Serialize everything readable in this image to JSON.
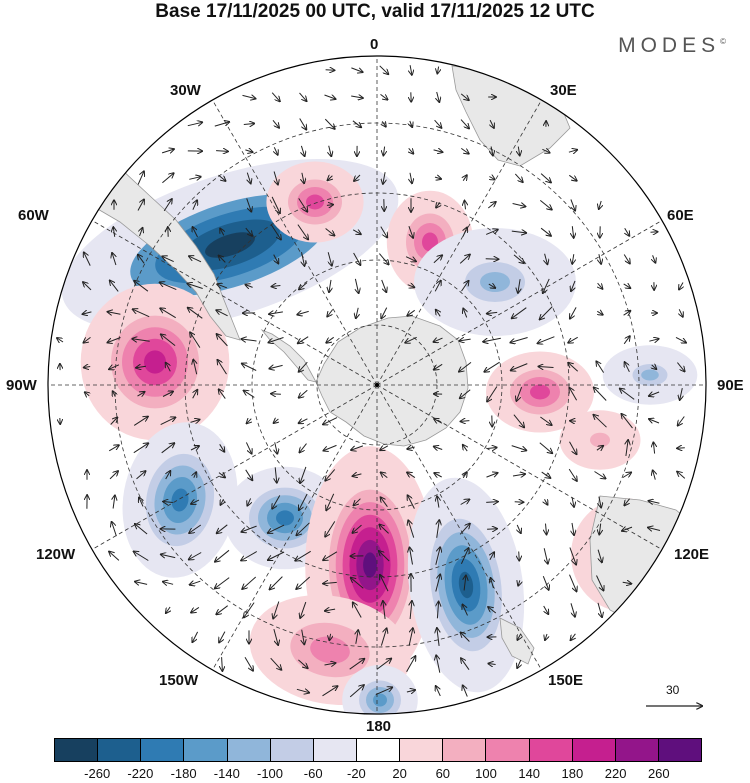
{
  "title": "Base 17/11/2025 00 UTC, valid 17/11/2025 12 UTC",
  "brand": "MODES",
  "brand_mark": "©",
  "longitude_labels": {
    "lon_0": "0",
    "lon_30e": "30E",
    "lon_60e": "60E",
    "lon_90e": "90E",
    "lon_120e": "120E",
    "lon_150e": "150E",
    "lon_180": "180",
    "lon_150w": "150W",
    "lon_120w": "120W",
    "lon_90w": "90W",
    "lon_60w": "60W",
    "lon_30w": "30W"
  },
  "reference_vector": {
    "value": "30"
  },
  "colorbar": {
    "labels": [
      "-260",
      "-220",
      "-180",
      "-140",
      "-100",
      "-60",
      "-20",
      "20",
      "60",
      "100",
      "140",
      "180",
      "220",
      "260"
    ],
    "colors": [
      "#17405f",
      "#1d5f8e",
      "#2f7bb3",
      "#5b9bc9",
      "#90b6da",
      "#c3cde6",
      "#e6e6f2",
      "#ffffff",
      "#f9d6da",
      "#f3afc0",
      "#ee82ae",
      "#e0479b",
      "#c51f8f",
      "#93158a",
      "#5f0f7d"
    ]
  },
  "map": {
    "projection": "south polar stereographic",
    "continent_color": "#e8e8e8"
  }
}
